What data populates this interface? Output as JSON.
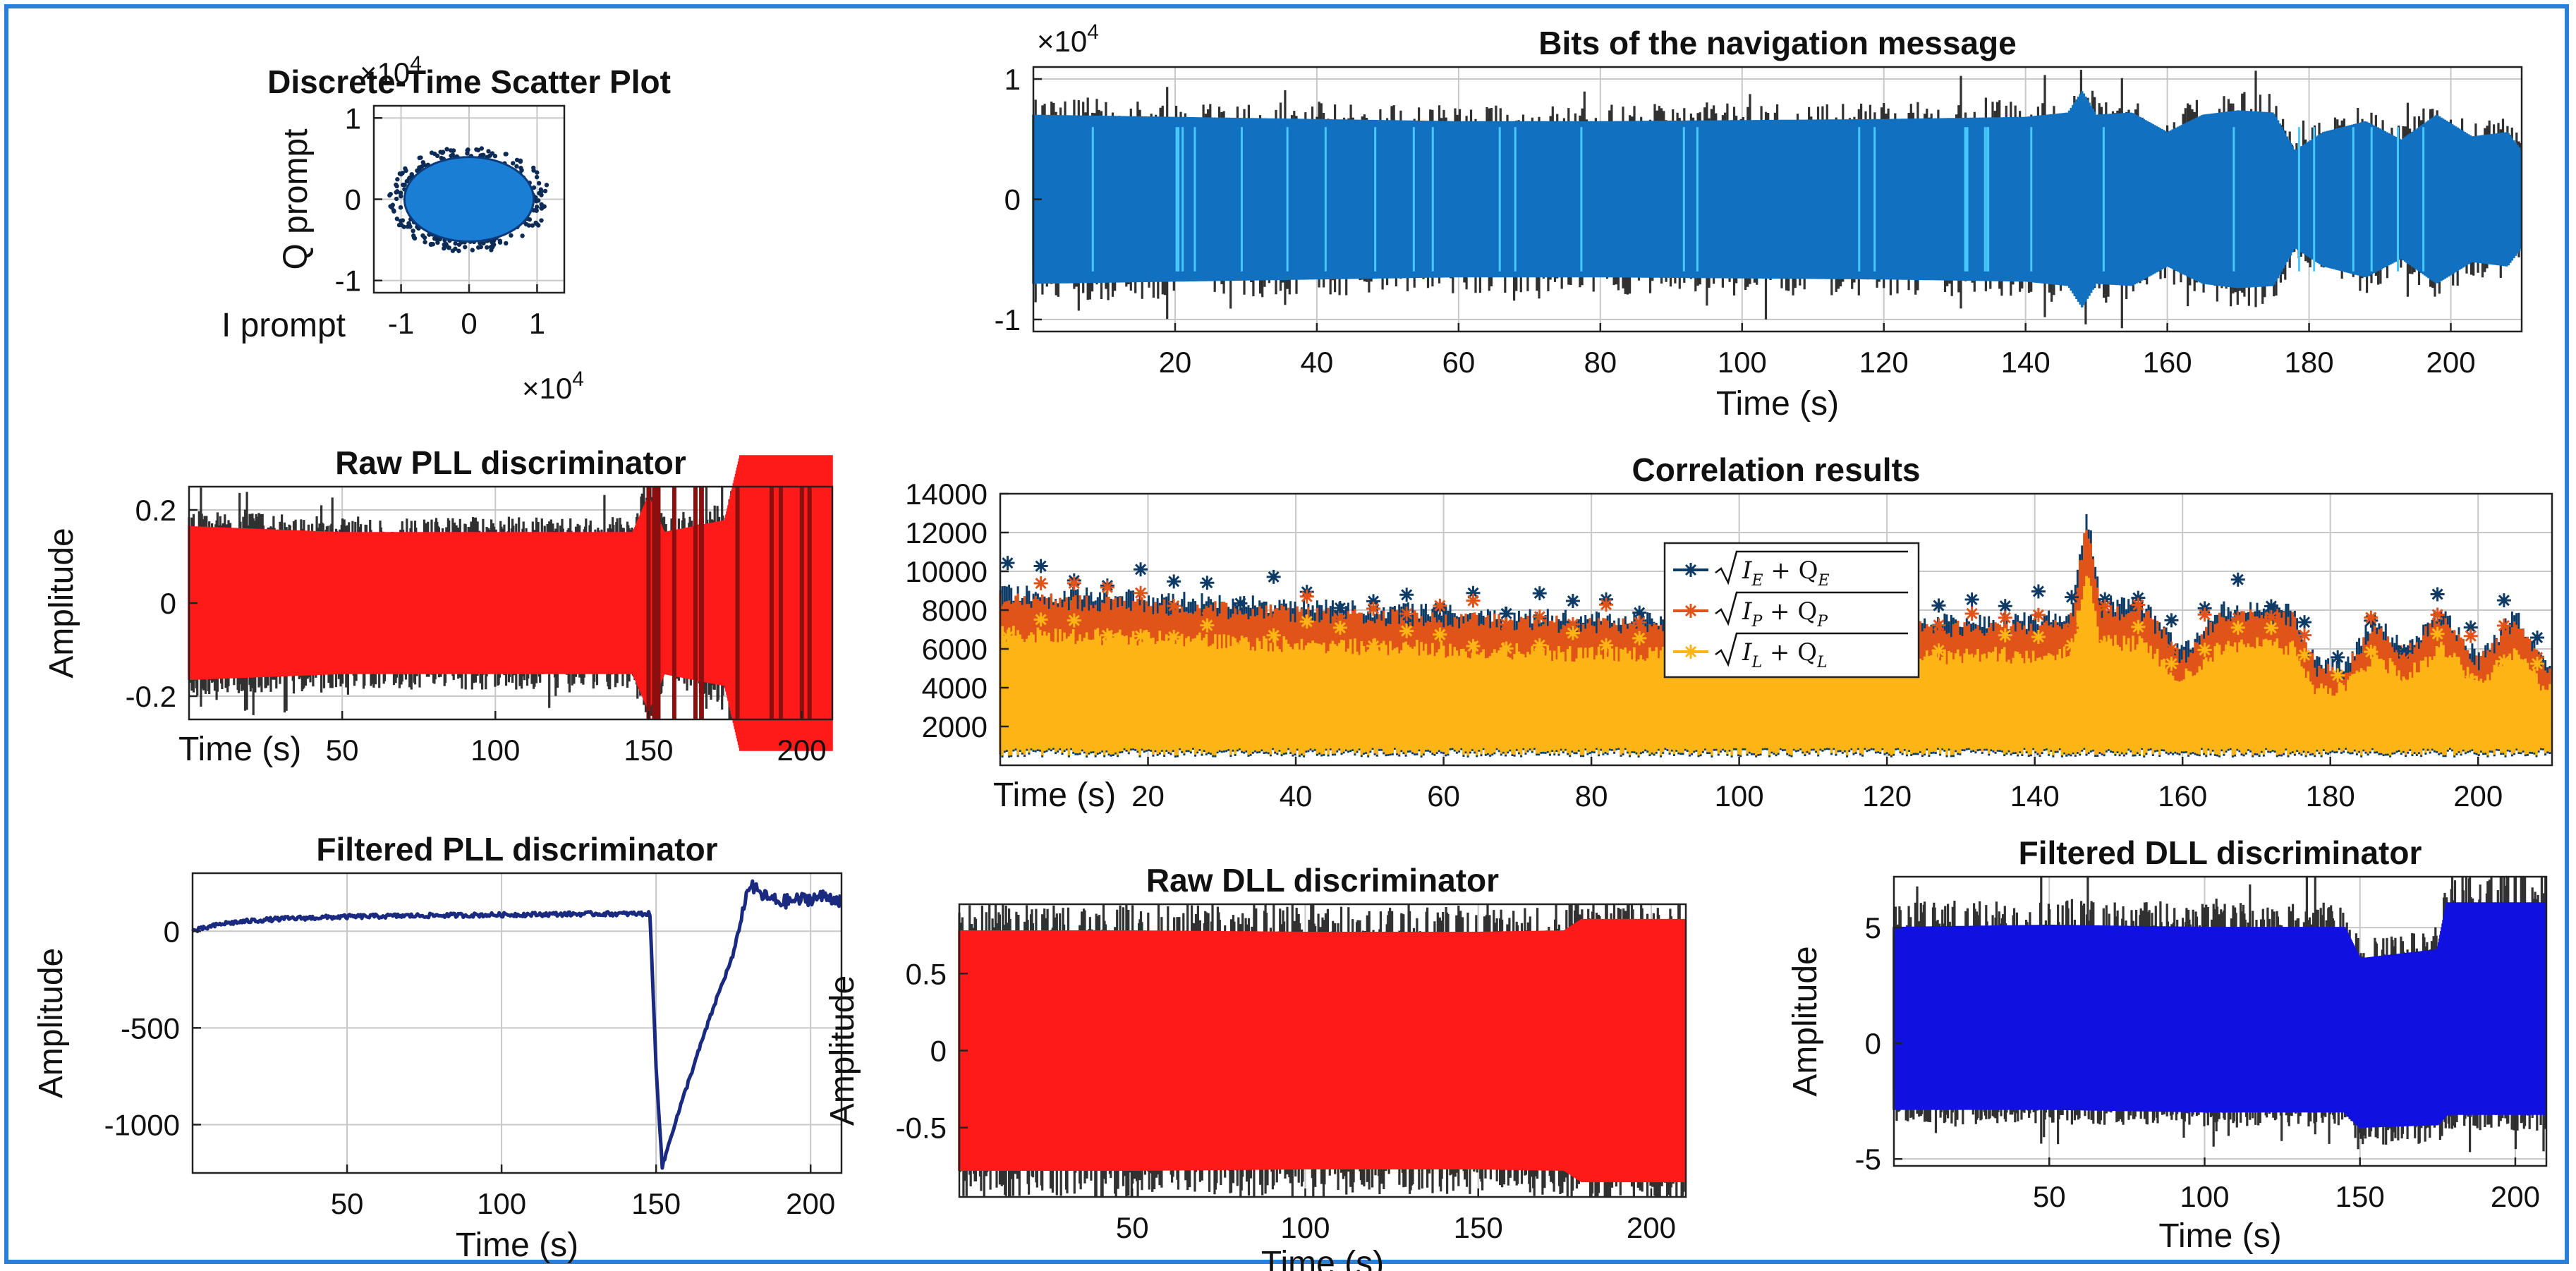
{
  "colors": {
    "frame": "#2a7fd6",
    "nav": "#1170c0",
    "pll_raw": "#ff1a1a",
    "pll_filt": "#1a2a80",
    "dll_raw": "#ff1a1a",
    "dll_filt": "#1010e0",
    "early": "#0d3b66",
    "prompt": "#e0541a",
    "late": "#fdb515"
  },
  "chart_data": [
    {
      "id": "scatter",
      "type": "scatter",
      "title": "Discrete-Time Scatter Plot",
      "xlabel": "I prompt",
      "ylabel": "Q prompt",
      "x_multiplier": "×10",
      "y_multiplier": "×10",
      "multiplier_exp": "4",
      "xlim": [
        -1.4,
        1.4
      ],
      "ylim": [
        -1.15,
        1.15
      ],
      "xticks": [
        -1,
        0,
        1
      ],
      "yticks": [
        -1,
        0,
        1
      ],
      "cluster": {
        "center": [
          0,
          0
        ],
        "rx": 0.95,
        "ry": 0.52
      },
      "grid": true
    },
    {
      "id": "nav",
      "type": "line",
      "title": "Bits of the navigation message",
      "xlabel": "Time (s)",
      "ylabel": "",
      "y_multiplier": "×10",
      "multiplier_exp": "4",
      "xlim": [
        0,
        210
      ],
      "ylim": [
        -1.1,
        1.1
      ],
      "xticks": [
        20,
        40,
        60,
        80,
        100,
        120,
        140,
        160,
        180,
        200
      ],
      "yticks": [
        -1,
        0,
        1
      ],
      "envelope": {
        "x": [
          0,
          20,
          40,
          60,
          80,
          100,
          120,
          140,
          146,
          148,
          150,
          155,
          160,
          165,
          170,
          175,
          178,
          182,
          188,
          193,
          198,
          203,
          208,
          210
        ],
        "y": [
          0.78,
          0.76,
          0.74,
          0.72,
          0.72,
          0.73,
          0.74,
          0.76,
          0.8,
          1.0,
          0.78,
          0.8,
          0.62,
          0.78,
          0.82,
          0.8,
          0.45,
          0.62,
          0.72,
          0.55,
          0.78,
          0.58,
          0.62,
          0.45
        ]
      },
      "grid": true
    },
    {
      "id": "pll_raw",
      "type": "line",
      "title": "Raw PLL discriminator",
      "xlabel": "Time (s)",
      "ylabel": "Amplitude",
      "xlim": [
        0,
        210
      ],
      "ylim": [
        -0.25,
        0.25
      ],
      "xticks": [
        50,
        100,
        150,
        200
      ],
      "yticks": [
        -0.2,
        0,
        0.2
      ],
      "ytick_labels": [
        "-0.2",
        "0",
        "0.2"
      ],
      "envelope": {
        "x": [
          0,
          50,
          100,
          145,
          150,
          155,
          175,
          180,
          185,
          190,
          195,
          200,
          205,
          210
        ],
        "y": [
          0.13,
          0.12,
          0.12,
          0.12,
          0.18,
          0.12,
          0.14,
          0.25,
          0.25,
          0.25,
          0.25,
          0.25,
          0.25,
          0.25
        ]
      },
      "grid": true
    },
    {
      "id": "corr",
      "type": "line",
      "title": "Correlation results",
      "xlabel": "Time (s)",
      "ylabel": "",
      "xlim": [
        0,
        210
      ],
      "ylim": [
        0,
        14000
      ],
      "xticks": [
        20,
        40,
        60,
        80,
        100,
        120,
        140,
        160,
        180,
        200
      ],
      "yticks": [
        2000,
        4000,
        6000,
        8000,
        10000,
        12000,
        14000
      ],
      "series": [
        {
          "name": "√(I_E² + Q_E²)",
          "legend_main": "I",
          "legend_sub1": "E",
          "legend_plus": "+ Q",
          "legend_sub2": "E"
        },
        {
          "name": "√(I_P² + Q_P²)",
          "legend_main": "I",
          "legend_sub1": "P",
          "legend_plus": "+ Q",
          "legend_sub2": "P"
        },
        {
          "name": "√(I_L² + Q_L²)",
          "legend_main": "I",
          "legend_sub1": "L",
          "legend_plus": "+ Q",
          "legend_sub2": "L"
        }
      ],
      "prompt_level": {
        "x": [
          0,
          20,
          40,
          60,
          80,
          100,
          120,
          140,
          145,
          147,
          149,
          155,
          160,
          165,
          170,
          175,
          178,
          182,
          186,
          190,
          195,
          200,
          205,
          210
        ],
        "y": [
          8500,
          8200,
          7800,
          7500,
          7200,
          7000,
          7000,
          7100,
          7500,
          12500,
          8000,
          7800,
          5500,
          7600,
          7800,
          7500,
          5000,
          4800,
          7200,
          5600,
          7600,
          5200,
          7400,
          4500
        ]
      },
      "legend": "center",
      "grid": true
    },
    {
      "id": "pll_filt",
      "type": "line",
      "title": "Filtered PLL discriminator",
      "xlabel": "Time (s)",
      "ylabel": "Amplitude",
      "xlim": [
        0,
        210
      ],
      "ylim": [
        -1250,
        300
      ],
      "xticks": [
        50,
        100,
        150,
        200
      ],
      "yticks": [
        -1000,
        -500,
        0
      ],
      "x": [
        0,
        5,
        10,
        20,
        30,
        50,
        70,
        100,
        130,
        148,
        150,
        152,
        155,
        160,
        165,
        170,
        175,
        180,
        185,
        190,
        195,
        200,
        205,
        210
      ],
      "y": [
        0,
        20,
        40,
        55,
        65,
        75,
        80,
        85,
        90,
        90,
        -700,
        -1220,
        -1050,
        -800,
        -560,
        -330,
        -120,
        240,
        180,
        150,
        160,
        170,
        180,
        160
      ],
      "grid": true
    },
    {
      "id": "dll_raw",
      "type": "line",
      "title": "Raw DLL discriminator",
      "xlabel": "Time (s)",
      "ylabel": "Amplitude",
      "xlim": [
        0,
        210
      ],
      "ylim": [
        -0.95,
        0.95
      ],
      "xticks": [
        50,
        100,
        150,
        200
      ],
      "yticks": [
        -0.5,
        0,
        0.5
      ],
      "ytick_labels": [
        "-0.5",
        "0",
        "0.5"
      ],
      "envelope": {
        "x": [
          0,
          50,
          100,
          150,
          175,
          180,
          210
        ],
        "y": [
          0.85,
          0.85,
          0.84,
          0.84,
          0.85,
          0.93,
          0.93
        ]
      },
      "grid": true
    },
    {
      "id": "dll_filt",
      "type": "line",
      "title": "Filtered DLL discriminator",
      "xlabel": "Time (s)",
      "ylabel": "Amplitude",
      "xlim": [
        0,
        210
      ],
      "ylim": [
        -5.3,
        7.2
      ],
      "xticks": [
        50,
        100,
        150,
        200
      ],
      "yticks": [
        -5,
        0,
        5
      ],
      "envelope_hi": {
        "x": [
          0,
          50,
          100,
          145,
          150,
          175,
          178,
          210
        ],
        "y": [
          5.2,
          5.3,
          5.2,
          5.2,
          3.8,
          4.2,
          6.3,
          6.3
        ]
      },
      "envelope_lo": {
        "x": [
          0,
          50,
          100,
          145,
          150,
          175,
          178,
          210
        ],
        "y": [
          -2.6,
          -2.6,
          -2.7,
          -2.7,
          -3.3,
          -3.2,
          -2.8,
          -2.8
        ]
      },
      "grid": true
    }
  ]
}
